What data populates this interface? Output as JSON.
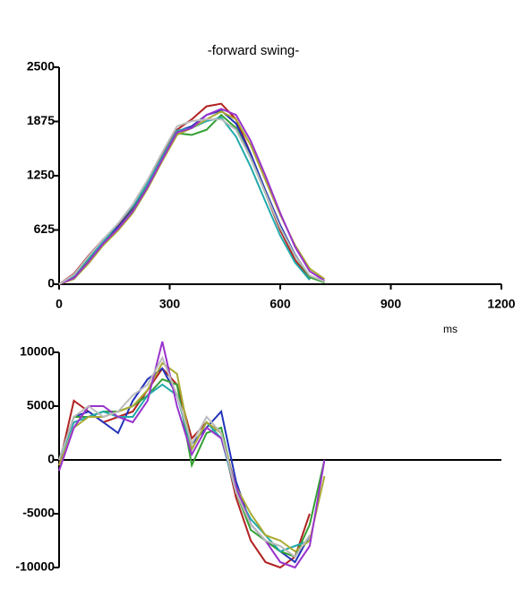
{
  "chart_data": [
    {
      "type": "line",
      "title": "-forward swing-",
      "xlabel": "ms",
      "x": [
        0,
        40,
        80,
        120,
        160,
        200,
        240,
        280,
        320,
        360,
        400,
        440,
        480,
        520,
        560,
        600,
        640,
        680,
        720
      ],
      "xlim": [
        0,
        1200
      ],
      "xticks": [
        0,
        300,
        600,
        900,
        1200
      ],
      "ylim": [
        0,
        2500
      ],
      "yticks": [
        0,
        625,
        1250,
        1875,
        2500
      ],
      "series": [
        {
          "color": "#b22222",
          "values": [
            0,
            120,
            330,
            520,
            680,
            880,
            1180,
            1480,
            1780,
            1900,
            2050,
            2080,
            1900,
            1500,
            1050,
            620,
            280,
            60,
            null
          ]
        },
        {
          "color": "#2233bb",
          "values": [
            0,
            90,
            290,
            500,
            660,
            860,
            1150,
            1460,
            1760,
            1820,
            1950,
            2000,
            1850,
            1500,
            1080,
            680,
            340,
            90,
            null
          ]
        },
        {
          "color": "#33a033",
          "values": [
            0,
            80,
            270,
            480,
            640,
            850,
            1130,
            1440,
            1740,
            1720,
            1780,
            1950,
            1800,
            1450,
            1050,
            650,
            330,
            80,
            20
          ]
        },
        {
          "color": "#22aaaa",
          "values": [
            0,
            100,
            300,
            490,
            700,
            900,
            1160,
            1470,
            1770,
            1800,
            1880,
            1920,
            1700,
            1350,
            950,
            560,
            250,
            50,
            null
          ]
        },
        {
          "color": "#aaaa33",
          "values": [
            0,
            60,
            240,
            450,
            620,
            820,
            1100,
            1420,
            1720,
            1800,
            1900,
            1990,
            1900,
            1600,
            1200,
            800,
            450,
            180,
            60
          ]
        },
        {
          "color": "#9933cc",
          "values": [
            0,
            70,
            260,
            470,
            640,
            840,
            1120,
            1440,
            1750,
            1800,
            1950,
            2020,
            1950,
            1650,
            1250,
            820,
            430,
            150,
            40
          ]
        },
        {
          "color": "#bbbbbb",
          "values": [
            0,
            110,
            320,
            520,
            700,
            920,
            1200,
            1520,
            1820,
            1880,
            1900,
            1900,
            1780,
            1450,
            1050,
            650,
            330,
            100,
            30
          ]
        }
      ]
    },
    {
      "type": "line",
      "x": [
        0,
        40,
        80,
        120,
        160,
        200,
        240,
        280,
        320,
        360,
        400,
        440,
        480,
        520,
        560,
        600,
        640,
        680,
        720
      ],
      "xlim": [
        0,
        1200
      ],
      "ylim": [
        -10000,
        10000
      ],
      "yticks": [
        -10000,
        -5000,
        0,
        5000,
        10000
      ],
      "series": [
        {
          "color": "#b22222",
          "values": [
            -500,
            5500,
            4500,
            3500,
            4000,
            4500,
            6500,
            8500,
            7000,
            2000,
            3500,
            2500,
            -3500,
            -7500,
            -9500,
            -10000,
            -9000,
            -5000,
            null
          ]
        },
        {
          "color": "#2233bb",
          "values": [
            0,
            4000,
            4500,
            3500,
            2500,
            5500,
            7500,
            8500,
            6000,
            1500,
            3000,
            4500,
            -2000,
            -6000,
            -7500,
            -8500,
            -9500,
            -7000,
            null
          ]
        },
        {
          "color": "#33a033",
          "values": [
            0,
            4000,
            4000,
            4500,
            4500,
            5000,
            6000,
            7500,
            7000,
            -500,
            2500,
            3000,
            -3000,
            -6500,
            -7500,
            -8500,
            -9000,
            -6000,
            0
          ]
        },
        {
          "color": "#22aaaa",
          "values": [
            0,
            3500,
            4000,
            4500,
            4000,
            4000,
            6000,
            7000,
            6000,
            1000,
            3500,
            2000,
            -3000,
            -5500,
            -7000,
            -8500,
            -8000,
            -7500,
            null
          ]
        },
        {
          "color": "#aaaa33",
          "values": [
            -500,
            3000,
            4000,
            4000,
            4500,
            5000,
            6500,
            9000,
            8000,
            1000,
            3500,
            2500,
            -2500,
            -5000,
            -7000,
            -7500,
            -8500,
            -7500,
            -1500
          ]
        },
        {
          "color": "#9933cc",
          "values": [
            -1000,
            3000,
            5000,
            5000,
            4000,
            3500,
            5500,
            11000,
            5000,
            500,
            3000,
            2000,
            -2500,
            -6000,
            -7500,
            -9500,
            -10000,
            -8000,
            0
          ]
        },
        {
          "color": "#bbbbbb",
          "values": [
            0,
            4000,
            5000,
            4000,
            4500,
            6000,
            7000,
            9500,
            6000,
            1500,
            4000,
            2500,
            -3000,
            -6000,
            -7500,
            -8000,
            -9000,
            -7000,
            null
          ]
        }
      ]
    }
  ]
}
